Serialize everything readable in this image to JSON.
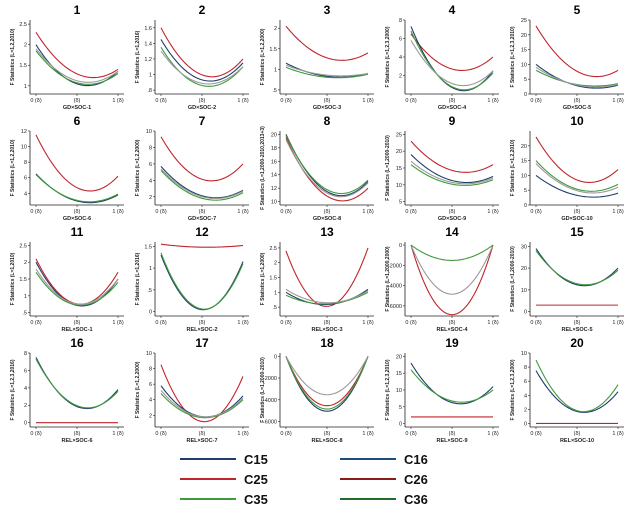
{
  "colors": {
    "C15": "#1f3d6b",
    "C16": "#1e4d7a",
    "C25": "#c0252d",
    "C26": "#8b1a1a",
    "C35": "#3f9a3a",
    "C36": "#1f6f2a",
    "gray": "#9a9a9a",
    "axis": "#222222"
  },
  "legend": [
    {
      "label": "C15",
      "color": "#1f3d6b"
    },
    {
      "label": "C16",
      "color": "#1e4d7a"
    },
    {
      "label": "C25",
      "color": "#c0252d"
    },
    {
      "label": "C26",
      "color": "#8b1a1a"
    },
    {
      "label": "C35",
      "color": "#3f9a3a"
    },
    {
      "label": "C36",
      "color": "#1f6f2a"
    }
  ],
  "chart_data": [
    {
      "type": "line",
      "title": "1",
      "ylabel": "F Statistics (L=1,2,2010)",
      "xlabel": "GD×SOC-1",
      "xticks": [
        "0 (δ)",
        "(δ)",
        "1 (δ)"
      ],
      "yticks": [
        "2.5",
        "2",
        "1.5",
        "1"
      ],
      "ylim": [
        0.8,
        2.6
      ],
      "series": [
        {
          "name": "C25",
          "color": "#c0252d",
          "values": [
            2.3,
            1.25,
            1.4
          ]
        },
        {
          "name": "C15",
          "color": "#1f3d6b",
          "values": [
            2.0,
            1.02,
            1.35
          ]
        },
        {
          "name": "C35",
          "color": "#3f9a3a",
          "values": [
            1.85,
            1.05,
            1.3
          ]
        },
        {
          "name": "gray",
          "color": "#9a9a9a",
          "values": [
            1.9,
            1.1,
            1.35
          ]
        }
      ]
    },
    {
      "type": "line",
      "title": "2",
      "ylabel": "F Statistics (L=1,2016)",
      "xlabel": "GD×SOC-2",
      "xticks": [
        "0 (δ)",
        "(δ)",
        "1 (δ)"
      ],
      "yticks": [
        "1.6",
        "1.4",
        "1.2",
        "1",
        ".8"
      ],
      "ylim": [
        0.75,
        1.7
      ],
      "series": [
        {
          "name": "C25",
          "color": "#c0252d",
          "values": [
            1.6,
            0.98,
            1.2
          ]
        },
        {
          "name": "C15",
          "color": "#1f3d6b",
          "values": [
            1.45,
            0.92,
            1.15
          ]
        },
        {
          "name": "C35",
          "color": "#3f9a3a",
          "values": [
            1.35,
            0.85,
            1.1
          ]
        },
        {
          "name": "gray",
          "color": "#9a9a9a",
          "values": [
            1.3,
            0.88,
            1.1
          ]
        }
      ]
    },
    {
      "type": "line",
      "title": "3",
      "ylabel": "F Statistics (L=1,2,2000)",
      "xlabel": "GD×SOC-3",
      "xticks": [
        "0 (δ)",
        "(δ)",
        "1 (δ)"
      ],
      "yticks": [
        "2",
        "1.5",
        "1",
        ".5"
      ],
      "ylim": [
        0.4,
        2.2
      ],
      "series": [
        {
          "name": "C25",
          "color": "#c0252d",
          "values": [
            2.05,
            1.25,
            1.4
          ]
        },
        {
          "name": "C15",
          "color": "#1f3d6b",
          "values": [
            1.15,
            0.82,
            0.9
          ]
        },
        {
          "name": "C35",
          "color": "#3f9a3a",
          "values": [
            1.05,
            0.8,
            0.88
          ]
        },
        {
          "name": "gray",
          "color": "#9a9a9a",
          "values": [
            1.1,
            0.85,
            0.9
          ]
        }
      ]
    },
    {
      "type": "line",
      "title": "4",
      "ylabel": "F Statistics (L=1,2,3,2000)",
      "xlabel": "GD×SOC-4",
      "xticks": [
        "0 (δ)",
        "(δ)",
        "1 (δ)"
      ],
      "yticks": [
        "8",
        "6",
        "4",
        "2"
      ],
      "ylim": [
        0,
        8
      ],
      "series": [
        {
          "name": "C25",
          "color": "#c0252d",
          "values": [
            6.5,
            2.6,
            4.0
          ]
        },
        {
          "name": "C15",
          "color": "#1f3d6b",
          "values": [
            7.3,
            0.5,
            2.5
          ]
        },
        {
          "name": "C35",
          "color": "#3f9a3a",
          "values": [
            6.8,
            0.6,
            2.3
          ]
        },
        {
          "name": "gray",
          "color": "#9a9a9a",
          "values": [
            5.8,
            1.0,
            2.5
          ]
        }
      ]
    },
    {
      "type": "line",
      "title": "5",
      "ylabel": "F Statistics (L=1,2,3,2010)",
      "xlabel": "GD×SOC-5",
      "xticks": [
        "0 (δ)",
        "(δ)",
        "1 (δ)"
      ],
      "yticks": [
        "25",
        "20",
        "15",
        "10",
        "5",
        "0"
      ],
      "ylim": [
        0,
        25
      ],
      "series": [
        {
          "name": "C25",
          "color": "#c0252d",
          "values": [
            23,
            7,
            8
          ]
        },
        {
          "name": "C15",
          "color": "#1f3d6b",
          "values": [
            10,
            2.5,
            3
          ]
        },
        {
          "name": "C35",
          "color": "#3f9a3a",
          "values": [
            8,
            3,
            3.5
          ]
        },
        {
          "name": "gray",
          "color": "#9a9a9a",
          "values": [
            9,
            2.8,
            3.2
          ]
        }
      ]
    },
    {
      "type": "line",
      "title": "6",
      "ylabel": "F Statistics (L=1,2,2010)",
      "xlabel": "GD×SOC-6",
      "xticks": [
        "0 (δ)",
        "(δ)",
        "1 (δ)"
      ],
      "yticks": [
        "12",
        "10",
        "8",
        "6",
        "4"
      ],
      "ylim": [
        2.5,
        12
      ],
      "series": [
        {
          "name": "C25",
          "color": "#c0252d",
          "values": [
            11.5,
            4.5,
            6.2
          ]
        },
        {
          "name": "C15",
          "color": "#1f3d6b",
          "values": [
            6.5,
            2.9,
            3.8
          ]
        },
        {
          "name": "C35",
          "color": "#3f9a3a",
          "values": [
            6.4,
            3.0,
            3.9
          ]
        }
      ]
    },
    {
      "type": "line",
      "title": "7",
      "ylabel": "F Statistics (L=1,2,2000)",
      "xlabel": "GD×SOC-7",
      "xticks": [
        "0 (δ)",
        "(δ)",
        "1 (δ)"
      ],
      "yticks": [
        "10",
        "8",
        "6",
        "4",
        "2"
      ],
      "ylim": [
        1,
        10
      ],
      "series": [
        {
          "name": "C25",
          "color": "#c0252d",
          "values": [
            9.3,
            4.0,
            6.0
          ]
        },
        {
          "name": "C15",
          "color": "#1f3d6b",
          "values": [
            5.7,
            2.0,
            2.8
          ]
        },
        {
          "name": "C35",
          "color": "#3f9a3a",
          "values": [
            5.2,
            1.7,
            2.5
          ]
        },
        {
          "name": "gray",
          "color": "#9a9a9a",
          "values": [
            5.4,
            1.9,
            2.7
          ]
        }
      ]
    },
    {
      "type": "line",
      "title": "8",
      "ylabel": "F Statistics (L=1,2000-2010,2013+3)",
      "xlabel": "GD×SOC-8",
      "xticks": [
        "0 (δ)",
        "(δ)",
        "1 (δ)"
      ],
      "yticks": [
        "20",
        "18",
        "16",
        "14",
        "12",
        "10"
      ],
      "ylim": [
        9.5,
        20.5
      ],
      "series": [
        {
          "name": "C25",
          "color": "#c0252d",
          "values": [
            19.5,
            10.5,
            12
          ]
        },
        {
          "name": "C15",
          "color": "#1f3d6b",
          "values": [
            20,
            11.2,
            13
          ]
        },
        {
          "name": "C35",
          "color": "#3f9a3a",
          "values": [
            19.8,
            11.5,
            13.2
          ]
        },
        {
          "name": "gray",
          "color": "#9a9a9a",
          "values": [
            19.2,
            11.0,
            12.8
          ]
        }
      ]
    },
    {
      "type": "line",
      "title": "9",
      "ylabel": "F Statistics (L=1,2000-2010)",
      "xlabel": "GD×SOC-9",
      "xticks": [
        "0 (δ)",
        "(δ)",
        "1 (δ)"
      ],
      "yticks": [
        "25",
        "20",
        "15",
        "10",
        "5"
      ],
      "ylim": [
        4,
        26
      ],
      "series": [
        {
          "name": "C25",
          "color": "#c0252d",
          "values": [
            23,
            14,
            16
          ]
        },
        {
          "name": "C15",
          "color": "#1f3d6b",
          "values": [
            19,
            11,
            12.5
          ]
        },
        {
          "name": "C35",
          "color": "#3f9a3a",
          "values": [
            16,
            10,
            11.5
          ]
        },
        {
          "name": "gray",
          "color": "#9a9a9a",
          "values": [
            17,
            10.5,
            12
          ]
        }
      ]
    },
    {
      "type": "line",
      "title": "10",
      "ylabel": "F Statistics (L=1,2,2010)",
      "xlabel": "GD×SOC-10",
      "xticks": [
        "0 (δ)",
        "(δ)",
        "1 (δ)"
      ],
      "yticks": [
        "20",
        "15",
        "10",
        "5",
        "0"
      ],
      "ylim": [
        0,
        25
      ],
      "series": [
        {
          "name": "C25",
          "color": "#c0252d",
          "values": [
            23,
            8,
            12
          ]
        },
        {
          "name": "C15",
          "color": "#1f3d6b",
          "values": [
            10,
            3,
            4
          ]
        },
        {
          "name": "C35",
          "color": "#3f9a3a",
          "values": [
            15,
            5,
            7
          ]
        },
        {
          "name": "gray",
          "color": "#9a9a9a",
          "values": [
            14,
            4.5,
            6
          ]
        }
      ]
    },
    {
      "type": "line",
      "title": "11",
      "ylabel": "F Statistics (L=1,2010)",
      "xlabel": "REL×SOC-1",
      "xticks": [
        "0 (δ)",
        "(δ)",
        "1 (δ)"
      ],
      "yticks": [
        "2.5",
        "2",
        "1.5",
        "1",
        ".5"
      ],
      "ylim": [
        0.4,
        2.6
      ],
      "series": [
        {
          "name": "C25",
          "color": "#c0252d",
          "values": [
            2.1,
            0.75,
            1.7
          ]
        },
        {
          "name": "C15",
          "color": "#1f3d6b",
          "values": [
            2.0,
            0.7,
            1.5
          ]
        },
        {
          "name": "C35",
          "color": "#3f9a3a",
          "values": [
            1.7,
            0.72,
            1.4
          ]
        },
        {
          "name": "gray",
          "color": "#9a9a9a",
          "values": [
            1.8,
            0.75,
            1.5
          ]
        }
      ]
    },
    {
      "type": "line",
      "title": "12",
      "ylabel": "F Statistics (L=1,2016)",
      "xlabel": "REL×SOC-2",
      "xticks": [
        "0 (δ)",
        "(δ)",
        "1 (δ)"
      ],
      "yticks": [
        "1.5",
        "1",
        ".5",
        "0"
      ],
      "ylim": [
        -0.1,
        1.6
      ],
      "series": [
        {
          "name": "C25",
          "color": "#c0252d",
          "values": [
            1.55,
            1.48,
            1.52
          ]
        },
        {
          "name": "C15",
          "color": "#1f3d6b",
          "values": [
            1.3,
            0.05,
            1.15
          ]
        },
        {
          "name": "C35",
          "color": "#3f9a3a",
          "values": [
            1.35,
            0.06,
            1.1
          ]
        }
      ]
    },
    {
      "type": "line",
      "title": "13",
      "ylabel": "F Statistics (L=1,2000)",
      "xlabel": "REL×SOC-3",
      "xticks": [
        "0 (δ)",
        "(δ)",
        "1 (δ)"
      ],
      "yticks": [
        "2.5",
        "2",
        "1.5",
        "1",
        ".5"
      ],
      "ylim": [
        0.2,
        2.7
      ],
      "series": [
        {
          "name": "C25",
          "color": "#c0252d",
          "values": [
            2.4,
            0.55,
            2.5
          ]
        },
        {
          "name": "C15",
          "color": "#1f3d6b",
          "values": [
            1.0,
            0.6,
            1.1
          ]
        },
        {
          "name": "C35",
          "color": "#3f9a3a",
          "values": [
            0.9,
            0.62,
            1.0
          ]
        },
        {
          "name": "gray",
          "color": "#9a9a9a",
          "values": [
            1.1,
            0.65,
            1.05
          ]
        }
      ]
    },
    {
      "type": "line",
      "title": "14",
      "ylabel": "F Statistics (L=1,2000,2000)",
      "xlabel": "REL×SOC-4",
      "xticks": [
        "0 (δ)",
        "(δ)",
        "1 (δ)"
      ],
      "yticks": [
        "0",
        "-2000",
        "-4000",
        "-6000"
      ],
      "ylim": [
        -7000,
        300
      ],
      "series": [
        {
          "name": "C25",
          "color": "#c0252d",
          "values": [
            0,
            -6800,
            0
          ]
        },
        {
          "name": "gray",
          "color": "#9a9a9a",
          "values": [
            0,
            -4800,
            0
          ]
        },
        {
          "name": "C35",
          "color": "#3f9a3a",
          "values": [
            0,
            -1500,
            0
          ]
        }
      ]
    },
    {
      "type": "line",
      "title": "15",
      "ylabel": "F Statistics (L=1,2000-2010)",
      "xlabel": "REL×SOC-5",
      "xticks": [
        "0 (δ)",
        "(δ)",
        "1 (δ)"
      ],
      "yticks": [
        "30",
        "20",
        "10",
        "0"
      ],
      "ylim": [
        -2,
        32
      ],
      "series": [
        {
          "name": "C25",
          "color": "#c0252d",
          "values": [
            3,
            3,
            3
          ]
        },
        {
          "name": "C15",
          "color": "#1f3d6b",
          "values": [
            29,
            12,
            20
          ]
        },
        {
          "name": "C35",
          "color": "#3f9a3a",
          "values": [
            28,
            12.5,
            19
          ]
        }
      ]
    },
    {
      "type": "line",
      "title": "16",
      "ylabel": "F Statistics (L=1,2,3,2016)",
      "xlabel": "REL×SOC-6",
      "xticks": [
        "0 (δ)",
        "(δ)",
        "1 (δ)"
      ],
      "yticks": [
        "8",
        "6",
        "4",
        "2",
        "0"
      ],
      "ylim": [
        -0.5,
        8
      ],
      "series": [
        {
          "name": "C25",
          "color": "#c0252d",
          "values": [
            0,
            0,
            0
          ]
        },
        {
          "name": "C15",
          "color": "#1f3d6b",
          "values": [
            7.5,
            1.7,
            3.8
          ]
        },
        {
          "name": "C35",
          "color": "#3f9a3a",
          "values": [
            7.3,
            1.8,
            3.6
          ]
        }
      ]
    },
    {
      "type": "line",
      "title": "17",
      "ylabel": "F Statistics (L=1,2,2000)",
      "xlabel": "REL×SOC-7",
      "xticks": [
        "0 (δ)",
        "(δ)",
        "1 (δ)"
      ],
      "yticks": [
        "10",
        "8",
        "6",
        "4",
        "2"
      ],
      "ylim": [
        0.5,
        10
      ],
      "series": [
        {
          "name": "C25",
          "color": "#c0252d",
          "values": [
            8.5,
            1.2,
            7.0
          ]
        },
        {
          "name": "C15",
          "color": "#1f3d6b",
          "values": [
            5.8,
            1.8,
            4.5
          ]
        },
        {
          "name": "C35",
          "color": "#3f9a3a",
          "values": [
            4.8,
            1.7,
            4.0
          ]
        },
        {
          "name": "gray",
          "color": "#9a9a9a",
          "values": [
            5.2,
            1.8,
            4.2
          ]
        }
      ]
    },
    {
      "type": "line",
      "title": "18",
      "ylabel": "F Statistics (L=1,2000-2010)",
      "xlabel": "REL×SOC-8",
      "xticks": [
        "0 (δ)",
        "(δ)",
        "1 (δ)"
      ],
      "yticks": [
        "0",
        "-2000",
        "-4000",
        "-6000"
      ],
      "ylim": [
        -6500,
        300
      ],
      "series": [
        {
          "name": "C25",
          "color": "#c0252d",
          "values": [
            0,
            -4500,
            0
          ]
        },
        {
          "name": "C15",
          "color": "#1f3d6b",
          "values": [
            0,
            -5000,
            0
          ]
        },
        {
          "name": "C35",
          "color": "#3f9a3a",
          "values": [
            0,
            -4800,
            0
          ]
        },
        {
          "name": "gray",
          "color": "#9a9a9a",
          "values": [
            0,
            -3500,
            0
          ]
        }
      ]
    },
    {
      "type": "line",
      "title": "19",
      "ylabel": "F Statistics (L=1,2,3,2010)",
      "xlabel": "REL×SOC-9",
      "xticks": [
        "0 (δ)",
        "(δ)",
        "1 (δ)"
      ],
      "yticks": [
        "20",
        "15",
        "10",
        "5",
        "0"
      ],
      "ylim": [
        -1,
        21
      ],
      "series": [
        {
          "name": "C25",
          "color": "#c0252d",
          "values": [
            2,
            2,
            2
          ]
        },
        {
          "name": "C15",
          "color": "#1f3d6b",
          "values": [
            18,
            6,
            11
          ]
        },
        {
          "name": "C35",
          "color": "#3f9a3a",
          "values": [
            16,
            6.5,
            10
          ]
        }
      ]
    },
    {
      "type": "line",
      "title": "20",
      "ylabel": "F Statistics (L=1,2,3,2000)",
      "xlabel": "REL×SOC-10",
      "xticks": [
        "0 (δ)",
        "(δ)",
        "1 (δ)"
      ],
      "yticks": [
        "10",
        "8",
        "6",
        "4",
        "2",
        "0"
      ],
      "ylim": [
        -0.5,
        10
      ],
      "series": [
        {
          "name": "C25",
          "color": "#c0252d",
          "values": [
            0,
            0,
            0
          ]
        },
        {
          "name": "C15",
          "color": "#1f3d6b",
          "values": [
            7.5,
            1.6,
            4.5
          ]
        },
        {
          "name": "C35",
          "color": "#3f9a3a",
          "values": [
            9.0,
            1.7,
            5.5
          ]
        }
      ]
    }
  ]
}
